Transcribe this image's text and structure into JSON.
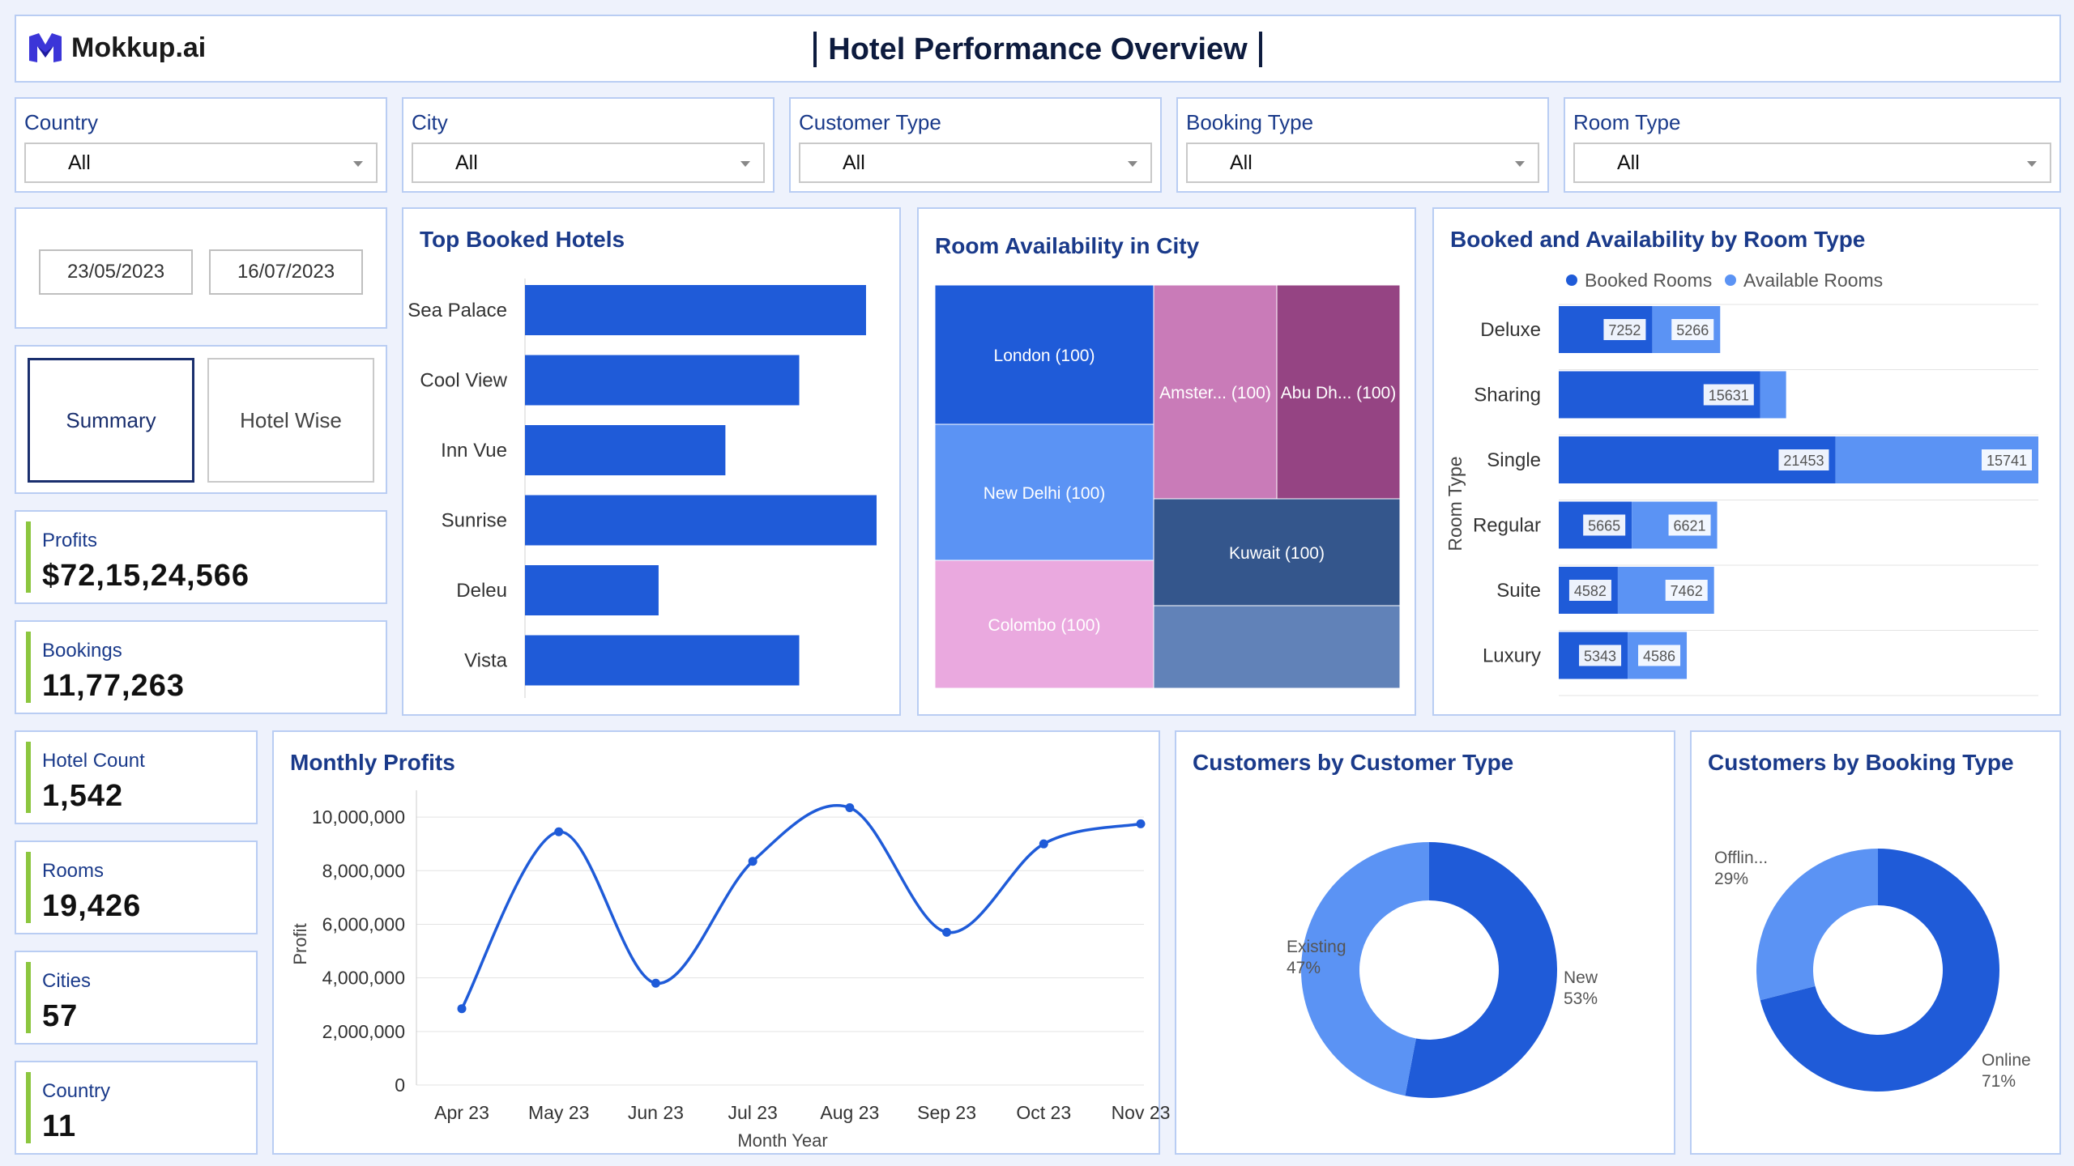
{
  "header": {
    "logo_text": "Mokkup.ai",
    "title": "Hotel Performance Overview"
  },
  "filters": [
    {
      "label": "Country",
      "value": "All"
    },
    {
      "label": "City",
      "value": "All"
    },
    {
      "label": "Customer Type",
      "value": "All"
    },
    {
      "label": "Booking Type",
      "value": "All"
    },
    {
      "label": "Room Type",
      "value": "All"
    }
  ],
  "date_range": {
    "start": "23/05/2023",
    "end": "16/07/2023"
  },
  "tabs": {
    "summary": "Summary",
    "hotel_wise": "Hotel Wise"
  },
  "kpis": {
    "profits": {
      "label": "Profits",
      "value": "$72,15,24,566"
    },
    "bookings": {
      "label": "Bookings",
      "value": "11,77,263"
    },
    "hotel_count": {
      "label": "Hotel Count",
      "value": "1,542"
    },
    "rooms": {
      "label": "Rooms",
      "value": "19,426"
    },
    "cities": {
      "label": "Cities",
      "value": "57"
    },
    "country": {
      "label": "Country",
      "value": "11"
    }
  },
  "colors": {
    "primary": "#1f5bd8",
    "secondary": "#5b93f4",
    "kpi_accent": "#8cc63f",
    "title": "#1a3a8a"
  },
  "chart_data": [
    {
      "id": "top_booked_hotels",
      "type": "bar",
      "orientation": "horizontal",
      "title": "Top Booked Hotels",
      "categories": [
        "Sea Palace",
        "Cool View",
        "Inn Vue",
        "Sunrise",
        "Deleu",
        "Vista"
      ],
      "category_labels": [
        "Sea Palace",
        "Cool View",
        "Inn Vue",
        "Sunrise",
        "Deleu",
        "Vista"
      ],
      "values": [
        97,
        78,
        57,
        100,
        38,
        78
      ],
      "xlim": [
        0,
        100
      ]
    },
    {
      "id": "room_availability_city",
      "type": "treemap",
      "title": "Room Availability in City",
      "items": [
        {
          "label": "London (100)",
          "value": 100,
          "color": "#1f5bd8",
          "text_color": "#ffffff"
        },
        {
          "label": "New Delhi (100)",
          "value": 100,
          "color": "#5b93f4",
          "text_color": "#ffffff"
        },
        {
          "label": "Colombo (100)",
          "value": 100,
          "color": "#eaa9df",
          "text_color": "#ffffff"
        },
        {
          "label": "Amster... (100)",
          "value": 100,
          "color": "#c97bb8",
          "text_color": "#ffffff"
        },
        {
          "label": "Abu Dh... (100)",
          "value": 100,
          "color": "#954483",
          "text_color": "#ffffff"
        },
        {
          "label": "Kuwait (100)",
          "value": 100,
          "color": "#34568c",
          "text_color": "#ffffff"
        },
        {
          "label": "",
          "value": 100,
          "color": "#6182b8",
          "text_color": "#ffffff"
        }
      ]
    },
    {
      "id": "booked_availability_room_type",
      "type": "bar",
      "orientation": "horizontal",
      "stacked": true,
      "title": "Booked and Availability by Room Type",
      "ylabel": "Room Type",
      "legend": "top",
      "categories": [
        "Deluxe",
        "Sharing",
        "Single",
        "Regular",
        "Suite",
        "Luxury"
      ],
      "series": [
        {
          "name": "Booked Rooms",
          "color": "#1f5bd8",
          "values": [
            7252,
            15631,
            21453,
            5665,
            4582,
            5343
          ]
        },
        {
          "name": "Available Rooms",
          "color": "#5b93f4",
          "values": [
            5266,
            2000,
            15741,
            6621,
            7462,
            4586
          ]
        }
      ],
      "value_labels": {
        "Booked Rooms": [
          "7252",
          "15631",
          "21453",
          "5665",
          "4582",
          "5343"
        ],
        "Available Rooms": [
          "5266",
          "",
          "15741",
          "6621",
          "7462",
          "4586"
        ]
      }
    },
    {
      "id": "monthly_profits",
      "type": "line",
      "title": "Monthly Profits",
      "xlabel": "Month Year",
      "ylabel": "Profit",
      "x": [
        "Apr 23",
        "May 23",
        "Jun 23",
        "Jul 23",
        "Aug 23",
        "Sep 23",
        "Oct 23",
        "Nov 23"
      ],
      "values": [
        2850000,
        9450000,
        3800000,
        8350000,
        10350000,
        5700000,
        9000000,
        9750000
      ],
      "ylim": [
        0,
        11000000
      ],
      "yticks": [
        0,
        2000000,
        4000000,
        6000000,
        8000000,
        10000000
      ],
      "ytick_labels": [
        "0",
        "2,000,000",
        "4,000,000",
        "6,000,000",
        "8,000,000",
        "10,000,000"
      ],
      "grid": true
    },
    {
      "id": "customers_by_customer_type",
      "type": "pie",
      "donut": true,
      "title": "Customers by Customer Type",
      "slices": [
        {
          "name": "New",
          "value": 53,
          "label": "New",
          "pct": "53%",
          "color": "#1f5bd8"
        },
        {
          "name": "Existing",
          "value": 47,
          "label": "Existing",
          "pct": "47%",
          "color": "#5b93f4"
        }
      ]
    },
    {
      "id": "customers_by_booking_type",
      "type": "pie",
      "donut": true,
      "title": "Customers by Booking Type",
      "slices": [
        {
          "name": "Online",
          "value": 71,
          "label": "Online",
          "pct": "71%",
          "color": "#1f5bd8"
        },
        {
          "name": "Offline",
          "value": 29,
          "label": "Offlin...",
          "pct": "29%",
          "color": "#5b93f4"
        }
      ]
    }
  ]
}
